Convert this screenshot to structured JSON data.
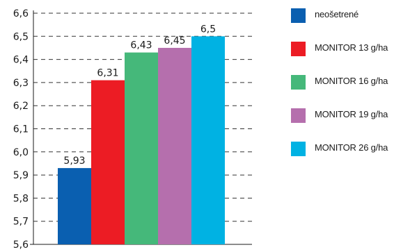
{
  "chart_data": {
    "type": "bar",
    "title": "",
    "xlabel": "",
    "ylabel": "",
    "ylim": [
      5.6,
      6.6
    ],
    "yticks": [
      "6,6",
      "6,5",
      "6,4",
      "6,3",
      "6,2",
      "6,1",
      "6,0",
      "5,9",
      "5,8",
      "5,7",
      "5,6"
    ],
    "grid": true,
    "legend_position": "right",
    "series": [
      {
        "name": "neošetrené",
        "value": 5.93,
        "label": "5,93",
        "color": "#0a5fb0"
      },
      {
        "name": "MONITOR 13 g/ha",
        "value": 6.31,
        "label": "6,31",
        "color": "#ec1c24"
      },
      {
        "name": "MONITOR 16 g/ha",
        "value": 6.43,
        "label": "6,43",
        "color": "#45b87a"
      },
      {
        "name": "MONITOR 19 g/ha",
        "value": 6.45,
        "label": "6,45",
        "color": "#b56fad"
      },
      {
        "name": "MONITOR 26 g/ha",
        "value": 6.5,
        "label": "6,5",
        "color": "#00b2e3"
      }
    ]
  }
}
